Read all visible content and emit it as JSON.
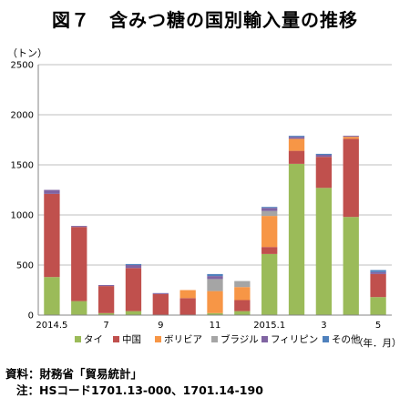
{
  "title": "図７　含みつ糖の国別輸入量の推移",
  "chart_data": {
    "type": "bar",
    "stacked": true,
    "ylabel": "（トン）",
    "xlabel": "（年．月）",
    "ylim": [
      0,
      2500
    ],
    "yticks": [
      0,
      500,
      1000,
      1500,
      2000,
      2500
    ],
    "grid": true,
    "legend_position": "bottom",
    "categories": [
      "2014.5",
      "",
      "7",
      "",
      "9",
      "",
      "11",
      "",
      "2015.1",
      "",
      "3",
      "",
      "5"
    ],
    "series": [
      {
        "name": "タイ",
        "color": "#9bbb59",
        "values": [
          380,
          140,
          20,
          40,
          0,
          0,
          20,
          40,
          610,
          1510,
          1270,
          980,
          180
        ]
      },
      {
        "name": "中国",
        "color": "#c0504d",
        "values": [
          830,
          740,
          270,
          430,
          210,
          170,
          0,
          110,
          70,
          130,
          310,
          780,
          230
        ]
      },
      {
        "name": "ボリビア",
        "color": "#f79646",
        "values": [
          0,
          0,
          0,
          0,
          0,
          80,
          220,
          130,
          310,
          120,
          0,
          20,
          0
        ]
      },
      {
        "name": "ブラジル",
        "color": "#a5a5a5",
        "values": [
          0,
          0,
          0,
          0,
          0,
          0,
          120,
          60,
          50,
          0,
          0,
          0,
          0
        ]
      },
      {
        "name": "フィリピン",
        "color": "#8064a2",
        "values": [
          40,
          10,
          10,
          30,
          10,
          0,
          30,
          0,
          30,
          20,
          20,
          10,
          20
        ]
      },
      {
        "name": "その他",
        "color": "#4f81bd",
        "values": [
          0,
          0,
          0,
          10,
          0,
          0,
          20,
          0,
          10,
          10,
          10,
          0,
          20
        ]
      }
    ]
  },
  "footer": {
    "source": "資料：財務省「貿易統計」",
    "note": "注：HSコード1701.13-000、1701.14-190"
  }
}
